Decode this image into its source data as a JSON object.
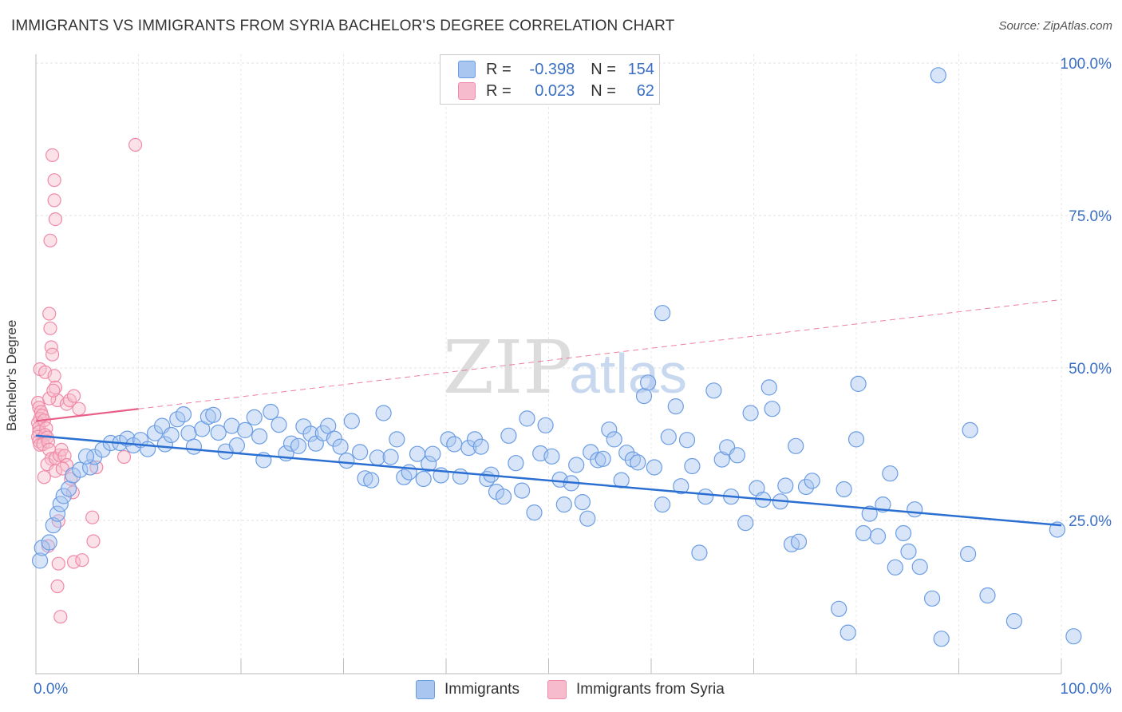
{
  "title": "IMMIGRANTS VS IMMIGRANTS FROM SYRIA BACHELOR'S DEGREE CORRELATION CHART",
  "source": "Source: ZipAtlas.com",
  "watermark": {
    "zip": "ZIP",
    "atlas": "atlas"
  },
  "legend": {
    "rows": [
      {
        "r_label": "R =",
        "r_value": "-0.398",
        "n_label": "N =",
        "n_value": "154"
      },
      {
        "r_label": "R =",
        "r_value": "0.023",
        "n_label": "N =",
        "n_value": "62"
      }
    ]
  },
  "chart_data": {
    "type": "scatter",
    "title": "IMMIGRANTS VS IMMIGRANTS FROM SYRIA BACHELOR'S DEGREE CORRELATION CHART",
    "xlabel": "",
    "ylabel": "Bachelor's Degree",
    "xlim": [
      0,
      100
    ],
    "ylim": [
      0,
      100
    ],
    "x_tick_labels": [
      "0.0%",
      "100.0%"
    ],
    "y_ticks": [
      {
        "value": 100,
        "label": "100.0%"
      },
      {
        "value": 75,
        "label": "75.0%"
      },
      {
        "value": 50,
        "label": "50.0%"
      },
      {
        "value": 25,
        "label": "25.0%"
      }
    ],
    "grid": true,
    "legend_position": "top-center",
    "series": [
      {
        "name": "Immigrants",
        "color": "#6b9de4",
        "fill": "#a9c6f0",
        "line_color": "#2a6fd1",
        "trend": {
          "x": [
            0,
            100
          ],
          "y": [
            38.9,
            24.2
          ]
        },
        "trend_style": "solid",
        "points": [
          [
            0.4,
            18.4
          ],
          [
            0.6,
            20.5
          ],
          [
            1.3,
            21.4
          ],
          [
            1.7,
            24.2
          ],
          [
            2.1,
            26.1
          ],
          [
            2.4,
            27.7
          ],
          [
            2.7,
            29.0
          ],
          [
            3.2,
            30.2
          ],
          [
            3.6,
            32.4
          ],
          [
            4.3,
            33.3
          ],
          [
            5.3,
            33.7
          ],
          [
            5.7,
            35.4
          ],
          [
            4.9,
            35.5
          ],
          [
            6.5,
            36.6
          ],
          [
            7.3,
            37.7
          ],
          [
            8.2,
            37.7
          ],
          [
            8.9,
            38.4
          ],
          [
            9.5,
            37.3
          ],
          [
            10.2,
            38.2
          ],
          [
            10.9,
            36.7
          ],
          [
            11.6,
            39.3
          ],
          [
            12.3,
            40.5
          ],
          [
            12.6,
            37.5
          ],
          [
            13.2,
            39.0
          ],
          [
            13.8,
            41.6
          ],
          [
            14.4,
            42.4
          ],
          [
            14.9,
            39.3
          ],
          [
            15.4,
            37.1
          ],
          [
            16.2,
            40.0
          ],
          [
            16.8,
            42.0
          ],
          [
            17.3,
            42.3
          ],
          [
            17.8,
            39.4
          ],
          [
            18.5,
            36.3
          ],
          [
            19.1,
            40.5
          ],
          [
            19.6,
            37.3
          ],
          [
            20.4,
            39.8
          ],
          [
            21.3,
            41.9
          ],
          [
            21.8,
            38.8
          ],
          [
            22.2,
            34.9
          ],
          [
            22.9,
            42.8
          ],
          [
            23.7,
            40.7
          ],
          [
            24.4,
            36.0
          ],
          [
            24.9,
            37.6
          ],
          [
            25.6,
            37.2
          ],
          [
            26.1,
            40.4
          ],
          [
            26.8,
            39.2
          ],
          [
            27.3,
            37.6
          ],
          [
            28.0,
            39.3
          ],
          [
            28.5,
            40.5
          ],
          [
            29.1,
            38.4
          ],
          [
            29.7,
            37.1
          ],
          [
            30.3,
            34.8
          ],
          [
            30.8,
            41.3
          ],
          [
            31.6,
            36.2
          ],
          [
            32.1,
            31.9
          ],
          [
            32.7,
            31.6
          ],
          [
            33.3,
            35.3
          ],
          [
            33.9,
            42.6
          ],
          [
            34.6,
            35.4
          ],
          [
            35.2,
            38.3
          ],
          [
            35.9,
            32.1
          ],
          [
            36.4,
            32.9
          ],
          [
            37.2,
            35.9
          ],
          [
            37.8,
            31.8
          ],
          [
            38.3,
            34.3
          ],
          [
            38.7,
            35.9
          ],
          [
            39.5,
            32.4
          ],
          [
            40.2,
            38.3
          ],
          [
            40.8,
            37.5
          ],
          [
            41.4,
            32.2
          ],
          [
            42.2,
            36.9
          ],
          [
            42.8,
            38.3
          ],
          [
            43.4,
            37.1
          ],
          [
            44.0,
            31.8
          ],
          [
            44.4,
            32.5
          ],
          [
            44.9,
            29.7
          ],
          [
            45.6,
            28.9
          ],
          [
            46.1,
            38.9
          ],
          [
            46.8,
            34.4
          ],
          [
            47.4,
            29.9
          ],
          [
            47.9,
            41.7
          ],
          [
            48.6,
            26.3
          ],
          [
            49.2,
            36.0
          ],
          [
            49.7,
            40.6
          ],
          [
            50.3,
            35.5
          ],
          [
            51.1,
            31.7
          ],
          [
            51.5,
            27.6
          ],
          [
            52.2,
            31.1
          ],
          [
            52.7,
            34.1
          ],
          [
            53.3,
            28.0
          ],
          [
            53.8,
            25.3
          ],
          [
            54.1,
            36.2
          ],
          [
            54.8,
            34.9
          ],
          [
            55.3,
            35.1
          ],
          [
            55.9,
            39.9
          ],
          [
            56.4,
            38.3
          ],
          [
            57.1,
            31.6
          ],
          [
            57.6,
            36.1
          ],
          [
            58.2,
            35.0
          ],
          [
            58.7,
            34.5
          ],
          [
            59.3,
            45.4
          ],
          [
            59.7,
            47.6
          ],
          [
            60.3,
            33.7
          ],
          [
            61.1,
            27.6
          ],
          [
            61.7,
            38.7
          ],
          [
            62.4,
            43.7
          ],
          [
            62.9,
            30.6
          ],
          [
            63.5,
            38.2
          ],
          [
            64.0,
            33.9
          ],
          [
            64.7,
            19.7
          ],
          [
            65.3,
            28.9
          ],
          [
            66.1,
            46.3
          ],
          [
            66.9,
            35.0
          ],
          [
            67.4,
            37.0
          ],
          [
            67.8,
            28.9
          ],
          [
            68.4,
            35.7
          ],
          [
            69.2,
            24.6
          ],
          [
            69.7,
            42.6
          ],
          [
            70.3,
            30.3
          ],
          [
            70.9,
            28.4
          ],
          [
            71.5,
            46.8
          ],
          [
            71.8,
            43.3
          ],
          [
            72.6,
            28.1
          ],
          [
            73.1,
            30.7
          ],
          [
            73.7,
            21.1
          ],
          [
            74.1,
            37.2
          ],
          [
            74.4,
            21.5
          ],
          [
            75.1,
            30.5
          ],
          [
            75.7,
            31.5
          ],
          [
            78.3,
            10.5
          ],
          [
            78.8,
            30.1
          ],
          [
            80.0,
            38.3
          ],
          [
            79.2,
            6.6
          ],
          [
            80.2,
            47.4
          ],
          [
            80.7,
            22.9
          ],
          [
            81.3,
            26.1
          ],
          [
            82.1,
            22.4
          ],
          [
            82.6,
            27.6
          ],
          [
            83.3,
            32.7
          ],
          [
            83.8,
            17.3
          ],
          [
            84.6,
            22.9
          ],
          [
            85.1,
            19.9
          ],
          [
            85.7,
            26.8
          ],
          [
            86.2,
            17.4
          ],
          [
            87.4,
            12.2
          ],
          [
            88.3,
            5.6
          ],
          [
            91.1,
            39.8
          ],
          [
            90.9,
            19.5
          ],
          [
            92.8,
            12.7
          ],
          [
            95.4,
            8.5
          ],
          [
            61.1,
            59.0
          ],
          [
            88.0,
            98.0
          ],
          [
            99.6,
            23.5
          ],
          [
            101.2,
            6.0
          ]
        ]
      },
      {
        "name": "Immigrants from Syria",
        "color": "#f08aa8",
        "fill": "#f6bccd",
        "line_color": "#e8608a",
        "trend": {
          "x": [
            0,
            100
          ],
          "y": [
            41.3,
            61.2
          ]
        },
        "trend_style": "solid 0-10, dashed 10-100",
        "points": [
          [
            1.6,
            84.9
          ],
          [
            1.8,
            80.8
          ],
          [
            1.8,
            77.5
          ],
          [
            1.9,
            74.4
          ],
          [
            1.4,
            70.9
          ],
          [
            1.3,
            58.9
          ],
          [
            1.4,
            56.5
          ],
          [
            1.5,
            53.4
          ],
          [
            1.6,
            52.2
          ],
          [
            0.4,
            49.8
          ],
          [
            0.9,
            49.3
          ],
          [
            1.8,
            48.7
          ],
          [
            1.9,
            46.8
          ],
          [
            2.1,
            44.7
          ],
          [
            0.2,
            44.3
          ],
          [
            0.3,
            43.5
          ],
          [
            0.5,
            42.8
          ],
          [
            0.4,
            41.7
          ],
          [
            0.2,
            41.0
          ],
          [
            0.3,
            40.2
          ],
          [
            0.3,
            39.5
          ],
          [
            0.2,
            38.7
          ],
          [
            0.3,
            38.0
          ],
          [
            0.4,
            37.4
          ],
          [
            0.6,
            42.2
          ],
          [
            0.8,
            41.4
          ],
          [
            1.0,
            40.1
          ],
          [
            0.9,
            39.0
          ],
          [
            1.1,
            38.6
          ],
          [
            0.7,
            37.5
          ],
          [
            1.2,
            37.9
          ],
          [
            1.3,
            36.6
          ],
          [
            1.5,
            35.1
          ],
          [
            1.1,
            34.2
          ],
          [
            1.9,
            35.2
          ],
          [
            2.3,
            35.7
          ],
          [
            2.5,
            36.6
          ],
          [
            2.8,
            35.6
          ],
          [
            3.0,
            34.1
          ],
          [
            0.8,
            32.1
          ],
          [
            1.9,
            33.1
          ],
          [
            2.6,
            33.5
          ],
          [
            3.4,
            31.8
          ],
          [
            1.3,
            45.0
          ],
          [
            1.7,
            46.3
          ],
          [
            3.0,
            44.1
          ],
          [
            3.3,
            44.7
          ],
          [
            3.7,
            45.4
          ],
          [
            4.2,
            43.3
          ],
          [
            5.9,
            33.7
          ],
          [
            8.6,
            35.4
          ],
          [
            9.7,
            86.6
          ],
          [
            3.6,
            29.6
          ],
          [
            2.2,
            24.9
          ],
          [
            5.5,
            25.5
          ],
          [
            1.2,
            20.8
          ],
          [
            2.2,
            17.9
          ],
          [
            2.1,
            14.2
          ],
          [
            2.4,
            9.2
          ],
          [
            3.7,
            18.2
          ],
          [
            5.6,
            21.6
          ],
          [
            4.5,
            18.5
          ]
        ]
      }
    ]
  },
  "bottom_legend": [
    "Immigrants",
    "Immigrants from Syria"
  ]
}
